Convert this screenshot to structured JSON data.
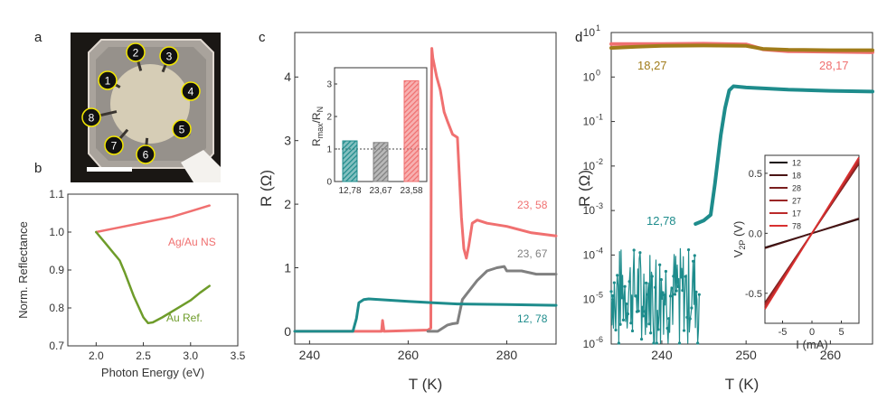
{
  "panels": {
    "a": "a",
    "b": "b",
    "c": "c",
    "d": "d"
  },
  "panel_a": {
    "contacts": [
      "1",
      "2",
      "3",
      "4",
      "5",
      "6",
      "7",
      "8"
    ],
    "colors": {
      "frame": "#c9bfb8",
      "sample": "#d9cdb4",
      "label_fill": "#111111",
      "label_ring": "#f2e600"
    }
  },
  "chart_data": [
    {
      "panel": "b",
      "type": "line",
      "xlabel": "Photon Energy (eV)",
      "ylabel": "Norm. Reflectance",
      "xlim": [
        1.7,
        3.5
      ],
      "ylim": [
        0.7,
        1.1
      ],
      "xticks": [
        2.0,
        2.5,
        3.0,
        3.5
      ],
      "xtick_labels": [
        "2.0",
        "2.5",
        "3.0",
        "3.5"
      ],
      "yticks": [
        0.7,
        0.8,
        0.9,
        1.0,
        1.1
      ],
      "ytick_labels": [
        "0.7",
        "0.8",
        "0.9",
        "1.0",
        "1.1"
      ],
      "series": [
        {
          "name": "Ag/Au NS",
          "color": "#f07070",
          "x": [
            2.0,
            2.2,
            2.4,
            2.6,
            2.8,
            3.0,
            3.2
          ],
          "y": [
            1.0,
            1.01,
            1.02,
            1.03,
            1.04,
            1.055,
            1.07
          ]
        },
        {
          "name": "Au Ref.",
          "color": "#6e9c2a",
          "x": [
            2.0,
            2.1,
            2.2,
            2.25,
            2.3,
            2.4,
            2.5,
            2.55,
            2.6,
            2.7,
            2.8,
            2.9,
            3.0,
            3.1,
            3.2
          ],
          "y": [
            1.0,
            0.97,
            0.94,
            0.925,
            0.895,
            0.83,
            0.775,
            0.76,
            0.762,
            0.775,
            0.79,
            0.805,
            0.82,
            0.84,
            0.858
          ]
        }
      ]
    },
    {
      "panel": "c",
      "type": "line",
      "xlabel": "T (K)",
      "ylabel": "R (Ω)",
      "xlim": [
        237,
        290
      ],
      "ylim": [
        -0.2,
        4.7
      ],
      "xticks": [
        240,
        260,
        280
      ],
      "xtick_labels": [
        "240",
        "260",
        "280"
      ],
      "yticks": [
        0,
        1,
        2,
        3,
        4
      ],
      "ytick_labels": [
        "0",
        "1",
        "2",
        "3",
        "4"
      ],
      "series": [
        {
          "name": "23, 58",
          "color": "#f07070",
          "x": [
            237,
            250,
            254.6,
            254.8,
            255.1,
            264,
            264.6,
            264.7,
            264.8,
            265,
            265.8,
            266.5,
            267.3,
            268,
            269,
            270,
            270.8,
            271.3,
            271.8,
            272.3,
            273,
            274,
            276,
            280,
            285,
            290
          ],
          "y": [
            0.0,
            0.0,
            0.0,
            0.17,
            0.0,
            0.02,
            0.05,
            3.4,
            4.45,
            4.3,
            4.0,
            3.8,
            3.45,
            3.3,
            3.1,
            3.05,
            1.8,
            1.3,
            1.15,
            1.35,
            1.7,
            1.75,
            1.7,
            1.65,
            1.55,
            1.5
          ]
        },
        {
          "name": "23, 67",
          "color": "#808080",
          "x": [
            264,
            266,
            268,
            269,
            270,
            270.6,
            271,
            272,
            274,
            276,
            278,
            279.5,
            280,
            283,
            286,
            290
          ],
          "y": [
            0.0,
            0.0,
            0.1,
            0.12,
            0.13,
            0.35,
            0.5,
            0.6,
            0.8,
            0.95,
            1.0,
            1.02,
            0.95,
            0.95,
            0.9,
            0.9
          ]
        },
        {
          "name": "12, 78",
          "color": "#1e8c8c",
          "x": [
            237,
            248.8,
            249.5,
            250,
            251,
            252,
            256,
            260,
            265,
            270,
            280,
            290
          ],
          "y": [
            0.0,
            0.0,
            0.2,
            0.45,
            0.5,
            0.51,
            0.49,
            0.47,
            0.45,
            0.43,
            0.42,
            0.41
          ]
        }
      ],
      "inset": {
        "type": "bar",
        "ylabel": "R_max/R_N",
        "ylabel_main": "R",
        "ylabel_sub1": "max",
        "ylabel_slash": "/R",
        "ylabel_sub2": "N",
        "categories": [
          "12,78",
          "23,67",
          "23,58"
        ],
        "values": [
          1.25,
          1.2,
          3.1
        ],
        "colors": [
          "#1e8c8c",
          "#808080",
          "#f07070"
        ],
        "ylim": [
          0,
          3.5
        ],
        "yticks": [
          0,
          1,
          2,
          3
        ],
        "ytick_labels": [
          "0",
          "1",
          "2",
          "3"
        ],
        "reference_line": 1
      }
    },
    {
      "panel": "d",
      "type": "line",
      "yscale": "log",
      "xlabel": "T (K)",
      "ylabel": "R (Ω)",
      "xlim": [
        234,
        265
      ],
      "ylim_exp": [
        -6,
        1
      ],
      "xticks": [
        240,
        250,
        260
      ],
      "xtick_labels": [
        "240",
        "250",
        "260"
      ],
      "yticks_exp": [
        -6,
        -5,
        -4,
        -3,
        -2,
        -1,
        0,
        1
      ],
      "ytick_base": "10",
      "ytick_exps": [
        "-6",
        "-5",
        "-4",
        "-3",
        "-2",
        "-1",
        "0",
        "1"
      ],
      "series": [
        {
          "name": "28,17",
          "color": "#f07070",
          "x": [
            234,
            240,
            245,
            250,
            252,
            255,
            260,
            265
          ],
          "y": [
            5.5,
            5.5,
            5.6,
            5.4,
            4.2,
            3.8,
            3.7,
            3.6
          ]
        },
        {
          "name": "18,27",
          "color": "#a07c1a",
          "x": [
            234,
            237,
            240,
            245,
            250,
            252,
            255,
            260,
            265
          ],
          "y": [
            4.5,
            4.8,
            5.0,
            5.1,
            5.0,
            4.3,
            4.1,
            4.0,
            4.0
          ]
        },
        {
          "name": "12,78",
          "color": "#1e8c8c",
          "x": [
            244,
            245,
            245.8,
            246.3,
            247,
            247.5,
            248,
            248.5,
            250,
            255,
            260,
            265
          ],
          "y": [
            0.0005,
            0.0006,
            0.0008,
            0.004,
            0.05,
            0.2,
            0.5,
            0.62,
            0.58,
            0.52,
            0.49,
            0.47
          ]
        }
      ],
      "noise_segment": {
        "series": "12,78",
        "x_start": 234,
        "x_end": 244.5,
        "log_center": -4.8,
        "log_spread": 1.0
      },
      "inset": {
        "type": "line",
        "xlabel": "I (mA)",
        "ylabel": "V_2P (V)",
        "ylabel_main": "V",
        "ylabel_sub": "2P",
        "ylabel_unit": "(V)",
        "xlim": [
          -8,
          8
        ],
        "ylim": [
          -0.75,
          0.65
        ],
        "xticks": [
          -5,
          0,
          5
        ],
        "xtick_labels": [
          "-5",
          "0",
          "5"
        ],
        "yticks": [
          -0.5,
          0.0,
          0.5
        ],
        "ytick_labels": [
          "-0.5",
          "0.0",
          "0.5"
        ],
        "series": [
          {
            "name": "12",
            "color": "#1a0a0a",
            "slope": 0.0148
          },
          {
            "name": "18",
            "color": "#4a1414",
            "slope": 0.0155
          },
          {
            "name": "28",
            "color": "#7a1e1e",
            "slope": 0.0725
          },
          {
            "name": "27",
            "color": "#9a2626",
            "slope": 0.0745
          },
          {
            "name": "17",
            "color": "#bb2a2a",
            "slope": 0.0765
          },
          {
            "name": "78",
            "color": "#d83030",
            "slope": 0.079
          }
        ]
      }
    }
  ],
  "labels": {
    "b_ag": "Ag/Au NS",
    "b_au": "Au Ref.",
    "c_2358": "23, 58",
    "c_2367": "23, 67",
    "c_1278": "12, 78",
    "d_1827": "18,27",
    "d_2817": "28,17",
    "d_1278": "12,78"
  }
}
